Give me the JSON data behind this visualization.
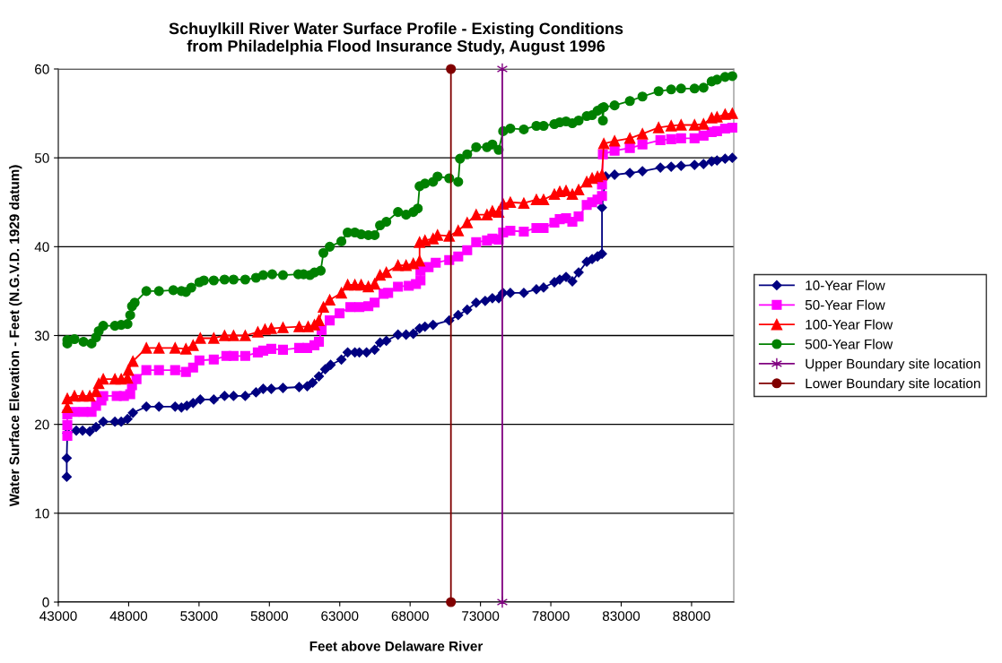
{
  "chart_data": {
    "type": "line",
    "title": "Schuylkill River Water Surface Profile - Existing Conditions\nfrom Philadelphia Flood Insurance Study, August 1996",
    "xlabel": "Feet above Delaware River",
    "ylabel": "Water Surface Elevation - Feet (N.G.V.D. 1929 datum)",
    "xlim": [
      43000,
      91000
    ],
    "xticks": [
      43000,
      48000,
      53000,
      58000,
      63000,
      68000,
      73000,
      78000,
      83000,
      88000
    ],
    "ylim": [
      0,
      60
    ],
    "yticks": [
      0,
      10,
      20,
      30,
      40,
      50,
      60
    ],
    "grid": "y",
    "legend": "right",
    "line_style": "solid",
    "series": [
      {
        "name": "10-Year Flow",
        "color": "#000080",
        "marker": "diamond",
        "x": [
          43600,
          43600,
          43640,
          44277,
          44724,
          45235,
          45682,
          46193,
          47023,
          47470,
          47917,
          48300,
          49258,
          50152,
          51302,
          51749,
          52132,
          52579,
          53090,
          54048,
          54814,
          55453,
          56283,
          57049,
          57560,
          58135,
          58965,
          60114,
          60689,
          61072,
          61519,
          61966,
          62350,
          63116,
          63563,
          64074,
          64393,
          64904,
          65479,
          65862,
          66309,
          67139,
          67714,
          68225,
          68672,
          69055,
          69630,
          70779,
          71418,
          72056,
          72695,
          73334,
          73845,
          74300,
          74600,
          75122,
          76080,
          76974,
          77484,
          78251,
          78634,
          79081,
          79528,
          79975,
          80550,
          80933,
          81316,
          81635,
          81635,
          81891,
          82529,
          83615,
          84509,
          85786,
          86552,
          87255,
          88212,
          88851,
          89426,
          89809,
          90384,
          90895
        ],
        "values": [
          14.1,
          16.2,
          19.0,
          19.3,
          19.3,
          19.2,
          19.7,
          20.3,
          20.3,
          20.3,
          20.6,
          21.3,
          22.0,
          22.0,
          22.0,
          21.9,
          22.1,
          22.4,
          22.8,
          22.8,
          23.2,
          23.2,
          23.2,
          23.6,
          24.0,
          24.0,
          24.1,
          24.2,
          24.3,
          24.7,
          25.4,
          26.2,
          26.7,
          27.3,
          28.1,
          28.1,
          28.1,
          28.1,
          28.4,
          29.2,
          29.4,
          30.1,
          30.1,
          30.2,
          30.8,
          31.0,
          31.2,
          31.7,
          32.3,
          32.9,
          33.7,
          33.9,
          34.2,
          34.2,
          34.8,
          34.8,
          34.8,
          35.2,
          35.4,
          36.0,
          36.3,
          36.6,
          36.1,
          37.1,
          38.3,
          38.6,
          38.9,
          39.2,
          44.4,
          47.9,
          48.1,
          48.3,
          48.5,
          48.9,
          49.0,
          49.1,
          49.2,
          49.3,
          49.6,
          49.7,
          49.9,
          50.0
        ]
      },
      {
        "name": "50-Year Flow",
        "color": "#ff00ff",
        "marker": "square",
        "x": [
          43640,
          43640,
          43640,
          44149,
          44788,
          45363,
          45682,
          46065,
          46193,
          47151,
          47662,
          48109,
          48237,
          48556,
          49258,
          50152,
          51302,
          52068,
          52579,
          53026,
          54048,
          54942,
          55453,
          56283,
          57177,
          57560,
          58135,
          58965,
          60114,
          60689,
          61200,
          61519,
          61711,
          62286,
          62987,
          63754,
          64393,
          65032,
          65479,
          66117,
          66437,
          67139,
          67905,
          68416,
          68736,
          68736,
          69310,
          69821,
          70779,
          71418,
          72056,
          72695,
          73461,
          73845,
          74291,
          74610,
          75122,
          76080,
          76974,
          77484,
          78251,
          78634,
          79081,
          79528,
          79975,
          80550,
          80933,
          81316,
          81635,
          81635,
          81699,
          82529,
          83615,
          84509,
          85786,
          86552,
          87255,
          88212,
          88851,
          89426,
          89809,
          90384,
          90895
        ],
        "values": [
          18.7,
          19.9,
          21.1,
          21.4,
          21.4,
          21.4,
          22.1,
          22.7,
          23.2,
          23.2,
          23.2,
          23.4,
          24.4,
          25.1,
          26.1,
          26.1,
          26.1,
          25.9,
          26.4,
          27.2,
          27.3,
          27.7,
          27.7,
          27.7,
          28.1,
          28.3,
          28.5,
          28.4,
          28.6,
          28.6,
          28.9,
          29.3,
          30.6,
          31.7,
          32.5,
          33.2,
          33.2,
          33.3,
          33.7,
          34.7,
          34.8,
          35.5,
          35.6,
          35.8,
          36.2,
          37.3,
          37.7,
          38.2,
          38.5,
          38.9,
          39.6,
          40.5,
          40.7,
          40.9,
          40.8,
          41.6,
          41.8,
          41.7,
          42.1,
          42.1,
          42.7,
          43.1,
          43.2,
          42.8,
          43.4,
          44.7,
          45.0,
          45.3,
          45.7,
          47.0,
          50.4,
          50.8,
          51.1,
          51.5,
          52.0,
          52.1,
          52.2,
          52.2,
          52.5,
          52.9,
          53.0,
          53.3,
          53.4
        ]
      },
      {
        "name": "100-Year Flow",
        "color": "#ff0000",
        "marker": "triangle",
        "x": [
          43640,
          43640,
          44149,
          44724,
          45235,
          45682,
          45874,
          46193,
          47023,
          47470,
          47917,
          47981,
          48300,
          49258,
          50152,
          51302,
          52068,
          52579,
          53090,
          54048,
          54814,
          55453,
          56283,
          57177,
          57688,
          58135,
          58965,
          60114,
          60753,
          61200,
          61519,
          61839,
          62286,
          63116,
          63563,
          64074,
          64521,
          65032,
          65479,
          65862,
          66309,
          67139,
          67714,
          68225,
          68672,
          68672,
          69055,
          69630,
          69949,
          70779,
          71418,
          72056,
          72695,
          73461,
          73845,
          74291,
          74610,
          75122,
          76080,
          76974,
          77484,
          78251,
          78634,
          79081,
          79528,
          79975,
          80550,
          80933,
          81316,
          81635,
          81763,
          82529,
          83615,
          84509,
          85658,
          86552,
          87255,
          88212,
          88851,
          89426,
          89809,
          90384,
          90895
        ],
        "values": [
          21.9,
          22.9,
          23.2,
          23.2,
          23.2,
          23.7,
          24.6,
          25.1,
          25.1,
          25.1,
          25.2,
          26.1,
          27.1,
          28.6,
          28.6,
          28.6,
          28.5,
          28.9,
          29.7,
          29.7,
          30.0,
          30.0,
          30.0,
          30.4,
          30.7,
          30.8,
          30.9,
          31.0,
          31.0,
          31.2,
          31.7,
          33.2,
          34.0,
          34.8,
          35.7,
          35.7,
          35.7,
          35.5,
          35.8,
          36.8,
          37.1,
          37.9,
          37.9,
          38.1,
          38.4,
          40.5,
          40.7,
          40.9,
          41.3,
          41.2,
          41.8,
          42.7,
          43.6,
          43.6,
          44.0,
          43.9,
          44.8,
          45.0,
          44.9,
          45.3,
          45.3,
          45.9,
          46.2,
          46.3,
          45.9,
          46.4,
          47.3,
          47.7,
          47.9,
          48.1,
          51.6,
          51.9,
          52.2,
          52.7,
          53.4,
          53.6,
          53.7,
          53.7,
          53.8,
          54.5,
          54.6,
          54.9,
          55.0
        ]
      },
      {
        "name": "500-Year Flow",
        "color": "#008000",
        "marker": "circle",
        "x": [
          43640,
          43640,
          44149,
          44788,
          45363,
          45682,
          45874,
          46193,
          47023,
          47470,
          47917,
          48109,
          48237,
          48428,
          49258,
          50152,
          51174,
          51749,
          52068,
          52451,
          53026,
          53345,
          54048,
          54814,
          55453,
          56283,
          57049,
          57560,
          58199,
          58965,
          60050,
          60433,
          60880,
          61200,
          61647,
          61839,
          62286,
          63116,
          63563,
          64074,
          64521,
          65032,
          65479,
          65862,
          66309,
          67139,
          67714,
          68225,
          68544,
          68672,
          69055,
          69630,
          69949,
          70779,
          71418,
          71545,
          72056,
          72695,
          73461,
          73845,
          74291,
          74610,
          75122,
          76080,
          76974,
          77484,
          78251,
          78634,
          79081,
          79528,
          79975,
          80550,
          80933,
          81316,
          81635,
          81699,
          81763,
          82529,
          83615,
          84509,
          85658,
          86552,
          87255,
          88212,
          88851,
          89426,
          89809,
          90384,
          90895
        ],
        "values": [
          29.1,
          29.5,
          29.6,
          29.3,
          29.1,
          29.8,
          30.5,
          31.1,
          31.1,
          31.2,
          31.3,
          32.3,
          33.3,
          33.7,
          35.0,
          35.0,
          35.1,
          35.0,
          34.9,
          35.4,
          36.0,
          36.2,
          36.2,
          36.3,
          36.3,
          36.3,
          36.5,
          36.8,
          36.9,
          36.8,
          36.9,
          36.9,
          36.8,
          37.1,
          37.3,
          39.3,
          40.0,
          40.6,
          41.6,
          41.6,
          41.4,
          41.3,
          41.3,
          42.4,
          42.8,
          43.9,
          43.6,
          43.9,
          44.3,
          46.8,
          47.1,
          47.3,
          47.9,
          47.7,
          47.3,
          49.9,
          50.4,
          51.2,
          51.2,
          51.5,
          50.9,
          53.0,
          53.3,
          53.2,
          53.6,
          53.6,
          53.8,
          54.0,
          54.1,
          53.9,
          54.2,
          54.7,
          54.8,
          55.3,
          55.6,
          54.2,
          55.7,
          55.9,
          56.4,
          56.9,
          57.5,
          57.7,
          57.8,
          57.8,
          57.9,
          58.6,
          58.8,
          59.1,
          59.2
        ]
      },
      {
        "name": "Upper Boundary site location",
        "color": "#800080",
        "marker": "cross",
        "x": [
          74550,
          74550
        ],
        "values": [
          0,
          60
        ]
      },
      {
        "name": "Lower Boundary site location",
        "color": "#800000",
        "marker": "circle",
        "x": [
          70900,
          70900
        ],
        "values": [
          0,
          60
        ]
      }
    ]
  }
}
